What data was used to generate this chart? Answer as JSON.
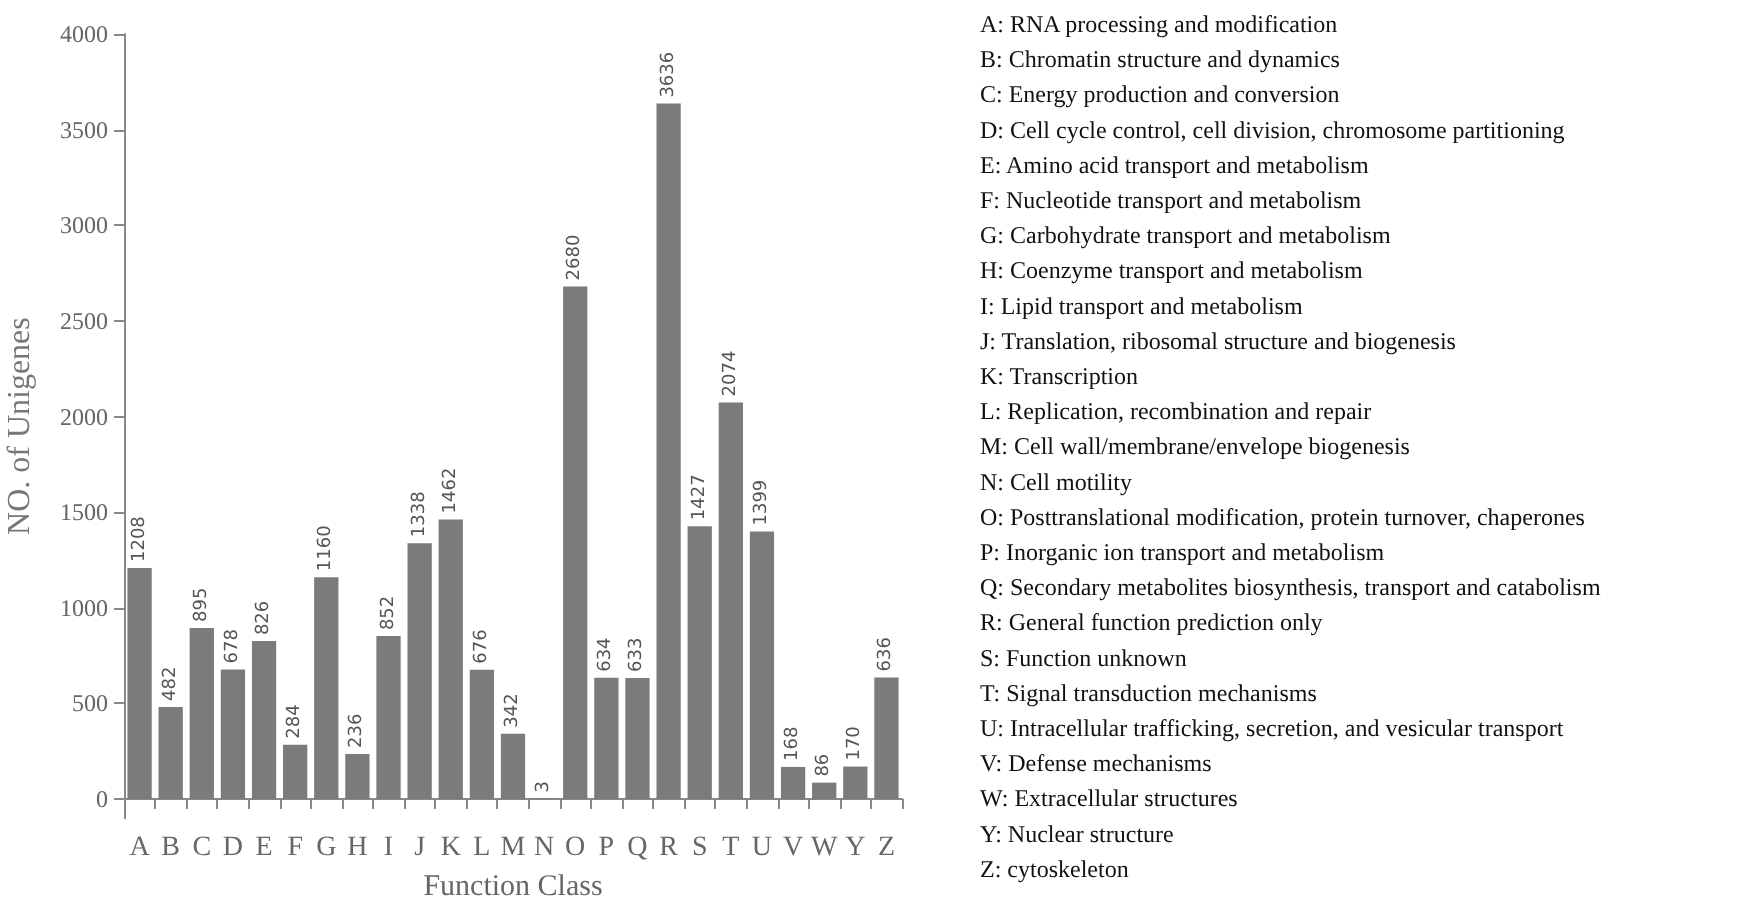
{
  "chart_data": {
    "type": "bar",
    "xlabel": "Function Class",
    "ylabel": "NO. of Unigenes",
    "categories": [
      "A",
      "B",
      "C",
      "D",
      "E",
      "F",
      "G",
      "H",
      "I",
      "J",
      "K",
      "L",
      "M",
      "N",
      "O",
      "P",
      "Q",
      "R",
      "S",
      "T",
      "U",
      "V",
      "W",
      "Y",
      "Z"
    ],
    "values": [
      1208,
      482,
      895,
      678,
      826,
      284,
      1160,
      236,
      852,
      1338,
      1462,
      676,
      342,
      3,
      2680,
      634,
      633,
      3636,
      1427,
      2074,
      1399,
      168,
      86,
      170,
      636
    ],
    "color": "#7b7b7b",
    "ylim": [
      -100,
      4000
    ],
    "yticks": [
      0,
      500,
      1000,
      1500,
      2000,
      2500,
      3000,
      3500,
      4000
    ],
    "data_labels": true,
    "grid": false,
    "annotations": [
      "A: RNA processing and modification",
      "B: Chromatin structure and dynamics",
      "C: Energy production and conversion",
      "D: Cell cycle control, cell division, chromosome partitioning",
      "E: Amino acid transport and metabolism",
      "F: Nucleotide transport and metabolism",
      "G: Carbohydrate transport and metabolism",
      "H: Coenzyme transport and metabolism",
      "I: Lipid transport and metabolism",
      "J: Translation, ribosomal structure and biogenesis",
      "K: Transcription",
      "L: Replication, recombination and repair",
      "M: Cell wall/membrane/envelope biogenesis",
      "N: Cell motility",
      "O: Posttranslational modification, protein turnover, chaperones",
      "P: Inorganic ion transport and metabolism",
      "Q: Secondary metabolites biosynthesis, transport and catabolism",
      "R: General function prediction only",
      "S: Function unknown",
      "T: Signal transduction mechanisms",
      "U: Intracellular trafficking, secretion, and vesicular transport",
      "V: Defense mechanisms",
      "W: Extracellular structures",
      "Y: Nuclear structure",
      "Z: cytoskeleton"
    ]
  }
}
